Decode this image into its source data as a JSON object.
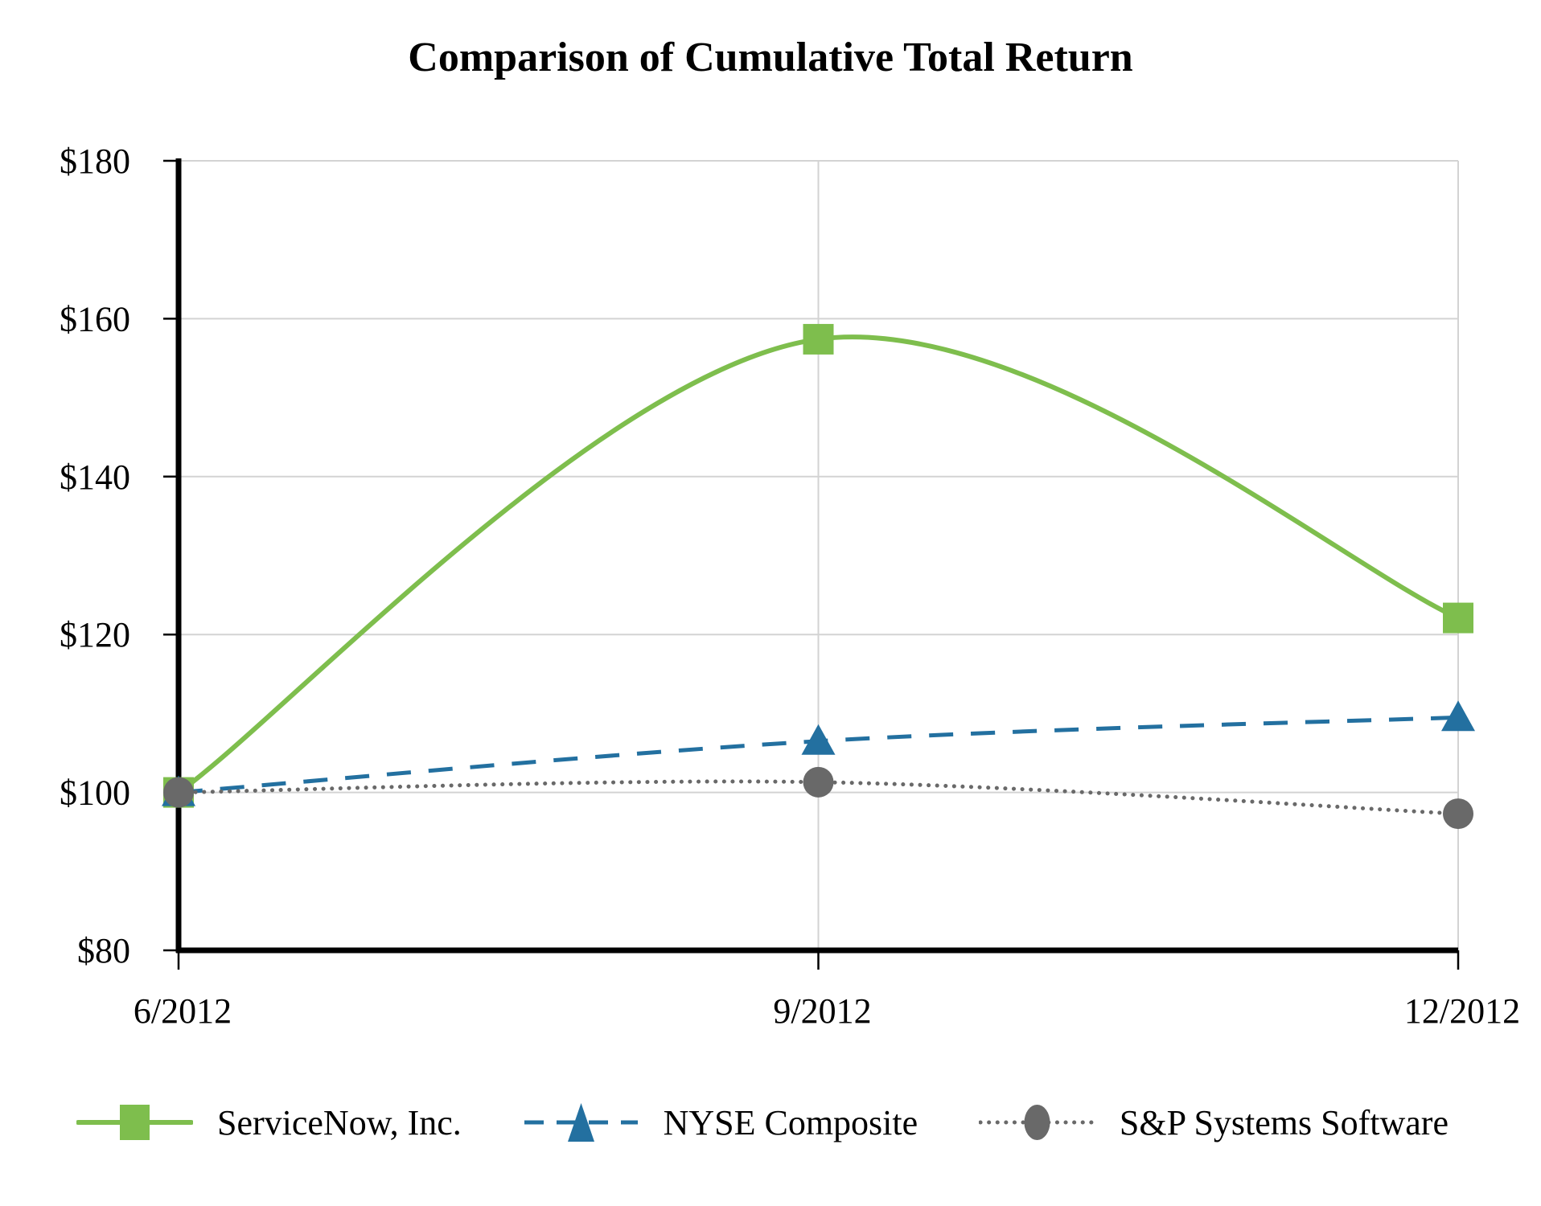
{
  "chart_data": {
    "type": "line",
    "title": "Comparison of Cumulative Total Return",
    "categories": [
      "6/2012",
      "9/2012",
      "12/2012"
    ],
    "series": [
      {
        "name": "ServiceNow, Inc.",
        "values": [
          100,
          157.4,
          122.1
        ],
        "color": "#7EBE4D",
        "marker": "square",
        "line_style": "solid"
      },
      {
        "name": "NYSE Composite",
        "values": [
          100,
          106.5,
          109.5
        ],
        "color": "#2370A0",
        "marker": "triangle",
        "line_style": "dashed"
      },
      {
        "name": "S&P Systems Software",
        "values": [
          100,
          101.3,
          97.3
        ],
        "color": "#696969",
        "marker": "circle",
        "line_style": "dotted"
      }
    ],
    "ylim": [
      80,
      180
    ],
    "y_tick_step": 20,
    "y_tick_prefix": "$",
    "y_tick_labels": [
      "$80",
      "$100",
      "$120",
      "$140",
      "$160",
      "$180"
    ],
    "xlabel": "",
    "ylabel": "",
    "grid": true,
    "legend_position": "bottom",
    "colors": {
      "axis": "#000000",
      "gridline": "#D3D3D3",
      "background": "#FFFFFF",
      "text": "#000000"
    }
  }
}
